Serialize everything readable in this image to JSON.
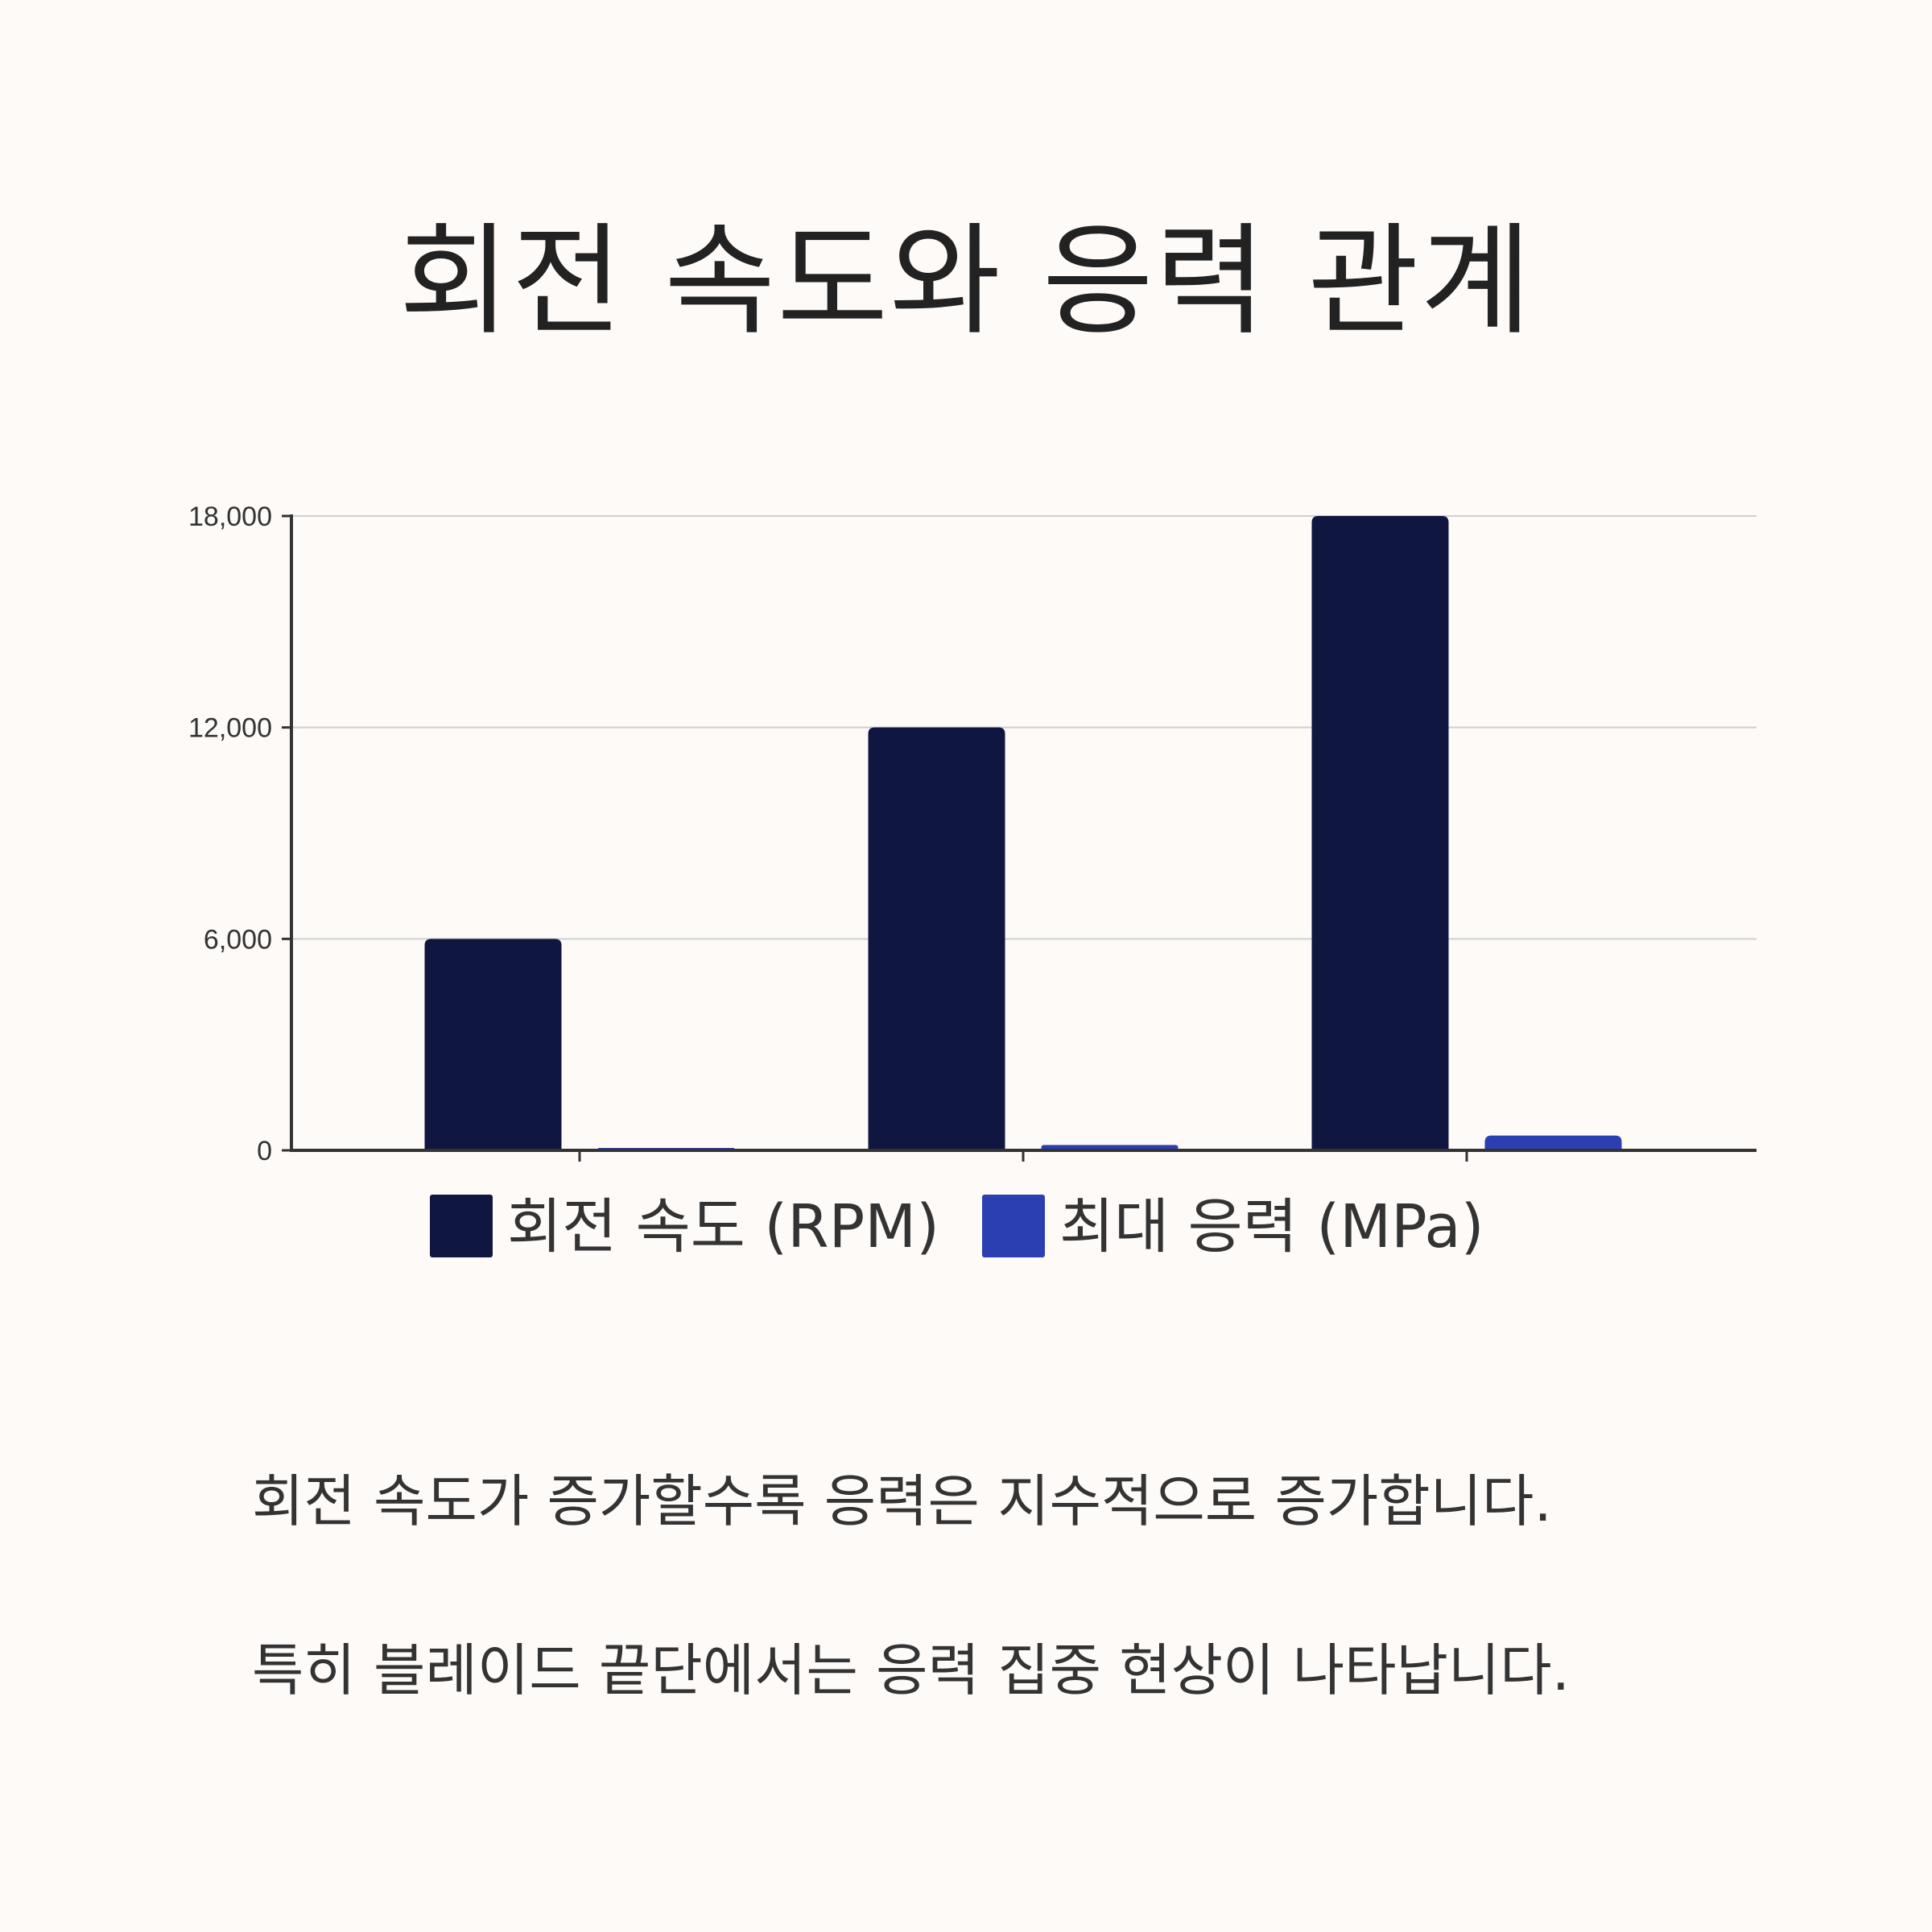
{
  "title": "회전 속도와 응력 관계",
  "chart_data": {
    "type": "bar",
    "categories": [
      "",
      "",
      ""
    ],
    "series": [
      {
        "name": "회전 속도 (RPM)",
        "values": [
          6000,
          12000,
          18000
        ],
        "color": "#0f1741"
      },
      {
        "name": "최대 응력 (MPa)",
        "values": [
          50,
          150,
          420
        ],
        "color": "#2b3fb3"
      }
    ],
    "ylim": [
      0,
      18000
    ],
    "yticks": [
      0,
      6000,
      12000,
      18000
    ],
    "ytick_labels": [
      "0",
      "6,000",
      "12,000",
      "18,000"
    ],
    "grid": true,
    "legend_position": "bottom",
    "xlabel": "",
    "ylabel": ""
  },
  "captions": [
    "회전 속도가 증가할수록 응력은 지수적으로 증가합니다.",
    "특히 블레이드 끝단에서는 응력 집중 현상이 나타납니다."
  ],
  "colors": {
    "background": "#fdfaf8",
    "grid": "#d0d0d0",
    "axis": "#333333",
    "text": "#222222"
  }
}
